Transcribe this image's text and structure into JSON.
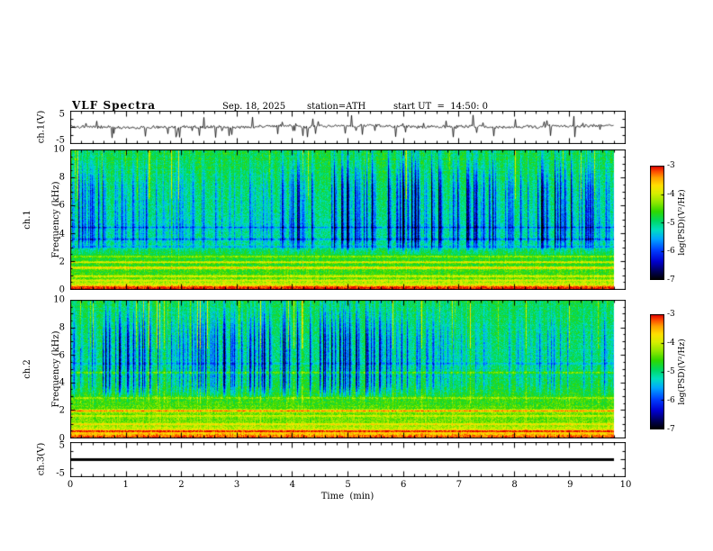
{
  "header": {
    "title": "VLF Spectra",
    "date": "Sep. 18, 2025",
    "station": "station=ATH",
    "start_ut": "start UT  =  14:50: 0"
  },
  "labels": {
    "ch1_wave": "ch.1(V)",
    "ch1_spec_l1": "ch.1",
    "ch2_spec_l1": "ch.2",
    "freq_axis": "Frequency (kHz)",
    "ch3_wave": "ch.3(V)",
    "time": "Time  (min)",
    "colorbar": "log(PSD)(V²/Hz)"
  },
  "ticks": {
    "time": [
      "0",
      "1",
      "2",
      "3",
      "4",
      "5",
      "6",
      "7",
      "8",
      "9",
      "10"
    ],
    "freq": [
      "10",
      "8",
      "6",
      "4",
      "2",
      "0"
    ],
    "volts": [
      "5",
      "-5"
    ],
    "colorbar": [
      "-3",
      "-4",
      "-5",
      "-6",
      "-7"
    ]
  },
  "colors": {
    "background": "#ffffff",
    "frame": "#000000",
    "trace": "#000000"
  },
  "chart_data": {
    "type": "heatmap",
    "figure": "4-panel VLF receiver quicklook: ch.1 voltage trace, ch.1 spectrogram, ch.2 spectrogram, ch.3 voltage trace",
    "x_axis": {
      "label": "Time  (min)",
      "range_min": [
        0,
        10
      ],
      "ticks": [
        0,
        1,
        2,
        3,
        4,
        5,
        6,
        7,
        8,
        9,
        10
      ],
      "data_extent_min": [
        0,
        9.8
      ]
    },
    "colorbar": {
      "label": "log(PSD)(V²/Hz)",
      "ticks": [
        -3,
        -4,
        -5,
        -6,
        -7
      ],
      "range": [
        -7,
        -3
      ]
    },
    "colormap_stops": [
      [
        0.0,
        "#000000"
      ],
      [
        0.06,
        "#00004a"
      ],
      [
        0.16,
        "#0000d0"
      ],
      [
        0.26,
        "#0040ff"
      ],
      [
        0.36,
        "#00a8ff"
      ],
      [
        0.44,
        "#00e0c0"
      ],
      [
        0.52,
        "#00d860"
      ],
      [
        0.6,
        "#30d800"
      ],
      [
        0.68,
        "#90e800"
      ],
      [
        0.76,
        "#d8f000"
      ],
      [
        0.83,
        "#ffe000"
      ],
      [
        0.9,
        "#ffa000"
      ],
      [
        0.95,
        "#ff5000"
      ],
      [
        1.0,
        "#e00000"
      ]
    ],
    "panels": [
      {
        "id": "ch1-waveform",
        "kind": "line",
        "ylabel": "ch.1(V)",
        "x_range_min": [
          0,
          10
        ],
        "y_range_v": [
          -5,
          5
        ],
        "y_ticks": [
          5,
          -5
        ],
        "summary": "Continuous noisy trace near +0.3 V with dense impulsive spikes reaching roughly ±4 V",
        "gen": {
          "baseline": 0.3,
          "noise_amp": 0.9,
          "spike_prob": 0.09,
          "spike_amp": 3.0
        }
      },
      {
        "id": "ch1-spectrogram",
        "kind": "heatmap",
        "ylabel": "ch.1 Frequency (kHz)",
        "x_range_min": [
          0,
          10
        ],
        "y_range_khz": [
          0,
          10
        ],
        "y_ticks_khz": [
          10,
          8,
          6,
          4,
          2,
          0
        ],
        "z_log_psd_range": [
          -7,
          -3
        ],
        "summary": "Green broadband background near 1e-5 V2/Hz, dense blue vertical sferic streaks ~3-8 kHz, red-yellow intense bands below 1 kHz, narrow yellow lines near 1.5-2.4 kHz, darker lines near 3-4.5 kHz",
        "base_profile": [
          [
            0,
            -3.0
          ],
          [
            0.18,
            -3.15
          ],
          [
            0.32,
            -3.9
          ],
          [
            0.55,
            -4.3
          ],
          [
            0.9,
            -4.55
          ],
          [
            1.4,
            -4.65
          ],
          [
            2.1,
            -4.7
          ],
          [
            2.7,
            -4.85
          ],
          [
            3.3,
            -5.05
          ],
          [
            4.6,
            -5.1
          ],
          [
            6.0,
            -5.0
          ],
          [
            7.5,
            -4.9
          ],
          [
            9.0,
            -4.8
          ],
          [
            10,
            -4.75
          ]
        ],
        "horizontal_lines": [
          {
            "f": 0.65,
            "amp": 0.55,
            "w": 0.05
          },
          {
            "f": 0.95,
            "amp": 0.7,
            "w": 0.05
          },
          {
            "f": 1.55,
            "amp": 1.05,
            "w": 0.06
          },
          {
            "f": 1.95,
            "amp": 0.85,
            "w": 0.05
          },
          {
            "f": 2.35,
            "amp": 0.5,
            "w": 0.05
          },
          {
            "f": 3.05,
            "amp": -0.5,
            "w": 0.06
          },
          {
            "f": 3.6,
            "amp": -0.6,
            "w": 0.05
          },
          {
            "f": 4.45,
            "amp": -0.5,
            "w": 0.05
          }
        ],
        "vertical_streaks": {
          "density": 0.3,
          "max_depth": 2.3,
          "band": [
            2.4,
            10
          ]
        }
      },
      {
        "id": "ch2-spectrogram",
        "kind": "heatmap",
        "ylabel": "ch.2 Frequency (kHz)",
        "x_range_min": [
          0,
          10
        ],
        "y_range_khz": [
          0,
          10
        ],
        "y_ticks_khz": [
          10,
          8,
          6,
          4,
          2,
          0
        ],
        "z_log_psd_range": [
          -7,
          -3
        ],
        "summary": "Similar to ch.1 but brighter yellow-green below 5 kHz, strong red-orange lines near 0.5 and 2 kHz, intense band below 1 kHz",
        "base_profile": [
          [
            0,
            -3.2
          ],
          [
            0.2,
            -3.35
          ],
          [
            0.4,
            -3.8
          ],
          [
            0.7,
            -4.1
          ],
          [
            1.1,
            -4.35
          ],
          [
            1.9,
            -4.45
          ],
          [
            2.6,
            -4.6
          ],
          [
            3.6,
            -4.75
          ],
          [
            4.6,
            -4.9
          ],
          [
            6.0,
            -5.0
          ],
          [
            8.0,
            -4.9
          ],
          [
            10,
            -4.8
          ]
        ],
        "horizontal_lines": [
          {
            "f": 0.5,
            "amp": 0.95,
            "w": 0.06
          },
          {
            "f": 1.0,
            "amp": 0.6,
            "w": 0.05
          },
          {
            "f": 1.6,
            "amp": 0.45,
            "w": 0.05
          },
          {
            "f": 1.97,
            "amp": 1.15,
            "w": 0.06
          },
          {
            "f": 2.9,
            "amp": 0.5,
            "w": 0.05
          },
          {
            "f": 4.75,
            "amp": 0.6,
            "w": 0.05
          },
          {
            "f": 5.4,
            "amp": -0.4,
            "w": 0.05
          }
        ],
        "vertical_streaks": {
          "density": 0.28,
          "max_depth": 2.1,
          "band": [
            2.6,
            10
          ]
        }
      },
      {
        "id": "ch3-waveform",
        "kind": "line",
        "ylabel": "ch.3(V)",
        "x_range_min": [
          0,
          10
        ],
        "y_range_v": [
          -5,
          5
        ],
        "y_ticks": [
          5,
          -5
        ],
        "summary": "Flat heavy black trace at 0 V (channel idle)",
        "gen": {
          "baseline": 0,
          "noise_amp": 0,
          "thickness_px": 3
        }
      }
    ]
  }
}
